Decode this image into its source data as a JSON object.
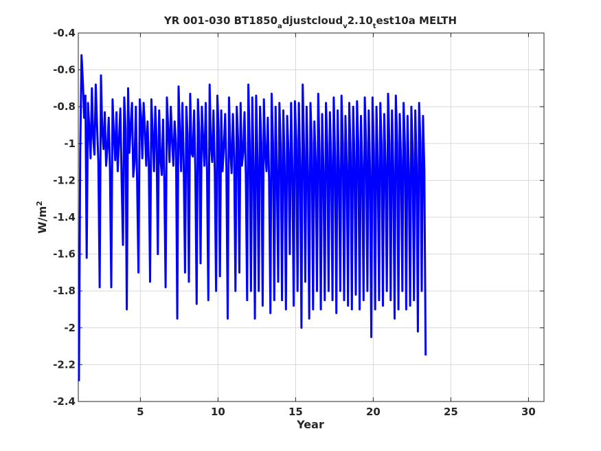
{
  "chart_data": {
    "type": "line",
    "title": {
      "parts": [
        {
          "text": "YR 001-030 BT1850",
          "sub": false
        },
        {
          "text": "a",
          "sub": true
        },
        {
          "text": "djustcloud",
          "sub": false
        },
        {
          "text": "v",
          "sub": true
        },
        {
          "text": "2.10",
          "sub": false
        },
        {
          "text": "t",
          "sub": true
        },
        {
          "text": "est10a MELTH",
          "sub": false
        }
      ]
    },
    "xlabel": "Year",
    "ylabel_base": "W/m",
    "ylabel_sup": "2",
    "xlim": [
      1,
      31
    ],
    "ylim": [
      -2.4,
      -0.4
    ],
    "xticks": [
      5,
      10,
      15,
      20,
      25,
      30
    ],
    "yticks": [
      -2.4,
      -2.2,
      -2,
      -1.8,
      -1.6,
      -1.4,
      -1.2,
      -1,
      -0.8,
      -0.6,
      -0.4
    ],
    "grid": true,
    "line_color": "#0000ff",
    "series": [
      {
        "x_start": 1.0417,
        "x_step": 0.08333,
        "values": [
          -2.29,
          -1.05,
          -0.52,
          -0.66,
          -0.86,
          -0.74,
          -1.62,
          -0.78,
          -0.92,
          -1.08,
          -0.7,
          -0.97,
          -1.06,
          -0.68,
          -0.9,
          -1.1,
          -1.78,
          -0.63,
          -0.92,
          -1.03,
          -0.83,
          -1.12,
          -1.02,
          -0.86,
          -1.14,
          -1.78,
          -0.76,
          -0.95,
          -1.09,
          -0.83,
          -1.15,
          -0.98,
          -0.81,
          -1.2,
          -1.55,
          -0.75,
          -0.92,
          -1.9,
          -0.7,
          -1.05,
          -0.9,
          -0.78,
          -1.18,
          -1.1,
          -0.8,
          -1.22,
          -1.7,
          -0.76,
          -0.85,
          -1.08,
          -0.78,
          -0.92,
          -1.12,
          -0.88,
          -1.1,
          -1.75,
          -0.76,
          -0.95,
          -1.15,
          -0.8,
          -0.98,
          -1.6,
          -0.82,
          -1.08,
          -1.17,
          -0.87,
          -1.2,
          -1.78,
          -0.75,
          -0.92,
          -1.1,
          -0.8,
          -0.98,
          -1.12,
          -0.88,
          -1.0,
          -1.95,
          -0.69,
          -0.94,
          -1.15,
          -0.78,
          -1.12,
          -1.7,
          -0.8,
          -0.95,
          -1.75,
          -0.73,
          -1.05,
          -1.07,
          -0.82,
          -1.15,
          -1.87,
          -0.76,
          -0.95,
          -1.65,
          -0.8,
          -0.98,
          -1.12,
          -0.78,
          -1.15,
          -1.85,
          -0.68,
          -1.0,
          -1.1,
          -0.82,
          -1.15,
          -1.8,
          -0.74,
          -0.93,
          -1.72,
          -0.82,
          -1.15,
          -1.02,
          -0.84,
          -1.13,
          -1.95,
          -0.75,
          -1.03,
          -1.16,
          -0.84,
          -1.07,
          -1.8,
          -0.8,
          -0.98,
          -1.7,
          -0.78,
          -1.12,
          -1.05,
          -0.83,
          -1.17,
          -1.85,
          -0.68,
          -1.0,
          -1.8,
          -0.75,
          -1.12,
          -1.95,
          -0.74,
          -1.08,
          -1.8,
          -0.8,
          -1.0,
          -1.88,
          -0.76,
          -1.05,
          -1.15,
          -0.86,
          -1.2,
          -1.92,
          -0.73,
          -1.0,
          -1.85,
          -0.8,
          -1.15,
          -1.75,
          -0.78,
          -1.02,
          -1.85,
          -0.82,
          -1.12,
          -1.9,
          -0.85,
          -1.05,
          -1.6,
          -0.78,
          -1.15,
          -1.88,
          -0.77,
          -0.98,
          -1.8,
          -0.78,
          -1.12,
          -2.0,
          -0.68,
          -1.03,
          -1.75,
          -0.8,
          -1.15,
          -1.95,
          -0.78,
          -1.0,
          -1.9,
          -0.88,
          -1.1,
          -1.8,
          -0.73,
          -1.05,
          -1.9,
          -0.84,
          -1.15,
          -1.85,
          -0.78,
          -1.02,
          -1.8,
          -0.83,
          -1.1,
          -1.85,
          -0.75,
          -1.08,
          -1.92,
          -0.82,
          -1.15,
          -1.8,
          -0.74,
          -1.0,
          -1.85,
          -0.85,
          -1.12,
          -1.88,
          -0.78,
          -1.05,
          -1.9,
          -0.8,
          -1.1,
          -1.82,
          -0.77,
          -1.02,
          -1.9,
          -0.85,
          -1.12,
          -1.85,
          -0.75,
          -1.0,
          -1.8,
          -0.82,
          -1.15,
          -2.05,
          -0.75,
          -1.05,
          -1.9,
          -0.8,
          -1.12,
          -1.85,
          -0.78,
          -1.02,
          -1.88,
          -0.84,
          -1.12,
          -1.8,
          -0.73,
          -1.0,
          -1.85,
          -0.82,
          -1.15,
          -1.95,
          -0.74,
          -1.0,
          -1.9,
          -0.84,
          -1.1,
          -1.8,
          -0.78,
          -1.02,
          -1.9,
          -0.85,
          -1.15,
          -1.88,
          -0.8,
          -1.05,
          -1.85,
          -0.82,
          -1.12,
          -2.02,
          -0.78,
          -1.0,
          -1.8,
          -0.85,
          -1.15,
          -2.15
        ]
      }
    ]
  }
}
